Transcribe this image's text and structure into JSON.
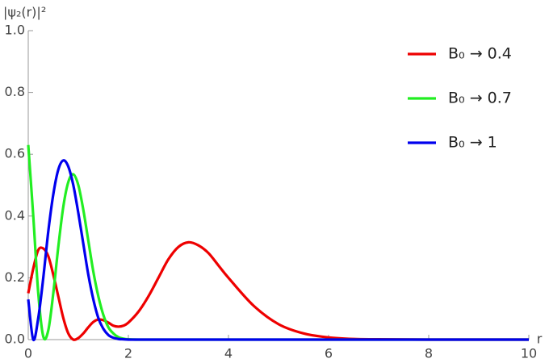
{
  "chart_data": {
    "type": "line",
    "x_label": "r",
    "y_label": "|ψ₂(r)|²",
    "x": [
      0,
      0.1,
      0.2,
      0.3,
      0.4,
      0.5,
      0.6,
      0.7,
      0.8,
      0.9,
      1.0,
      1.1,
      1.2,
      1.3,
      1.4,
      1.5,
      1.6,
      1.7,
      1.8,
      1.9,
      2.0,
      2.2,
      2.4,
      2.6,
      2.8,
      3.0,
      3.2,
      3.4,
      3.6,
      3.8,
      4.0,
      4.5,
      5,
      5.5,
      6,
      6.5,
      7,
      8,
      9,
      10
    ],
    "series": [
      {
        "name": "B₀ → 0.4",
        "color": "#ee0000",
        "values": [
          0.15,
          0.23,
          0.29,
          0.295,
          0.27,
          0.21,
          0.14,
          0.07,
          0.02,
          0.0,
          0.005,
          0.02,
          0.04,
          0.057,
          0.065,
          0.063,
          0.055,
          0.045,
          0.042,
          0.045,
          0.055,
          0.09,
          0.14,
          0.2,
          0.26,
          0.3,
          0.315,
          0.305,
          0.28,
          0.24,
          0.2,
          0.11,
          0.05,
          0.02,
          0.007,
          0.002,
          0.001,
          0,
          0,
          0
        ]
      },
      {
        "name": "B₀ → 0.7",
        "color": "#22ee22",
        "values": [
          0.63,
          0.4,
          0.15,
          0.01,
          0.03,
          0.15,
          0.3,
          0.43,
          0.51,
          0.535,
          0.5,
          0.42,
          0.32,
          0.22,
          0.14,
          0.08,
          0.04,
          0.02,
          0.008,
          0.003,
          0.001,
          0,
          0,
          0,
          0,
          0,
          0,
          0,
          0,
          0,
          0,
          0,
          0,
          0,
          0,
          0,
          0,
          0,
          0,
          0
        ]
      },
      {
        "name": "B₀ → 1",
        "color": "#0000ee",
        "values": [
          0.13,
          0.0,
          0.07,
          0.2,
          0.35,
          0.47,
          0.55,
          0.58,
          0.56,
          0.5,
          0.41,
          0.31,
          0.21,
          0.13,
          0.07,
          0.035,
          0.015,
          0.006,
          0.002,
          0.001,
          0,
          0,
          0,
          0,
          0,
          0,
          0,
          0,
          0,
          0,
          0,
          0,
          0,
          0,
          0,
          0,
          0,
          0,
          0,
          0
        ]
      }
    ],
    "xlim": [
      0,
      10
    ],
    "ylim": [
      0,
      1
    ],
    "xticks": [
      0,
      2,
      4,
      6,
      8,
      10
    ],
    "yticks": [
      {
        "value": 0,
        "label": "0.0"
      },
      0.2,
      0.4,
      0.6,
      0.8,
      {
        "value": 1,
        "label": "1.0"
      }
    ],
    "legend": "upper right"
  }
}
